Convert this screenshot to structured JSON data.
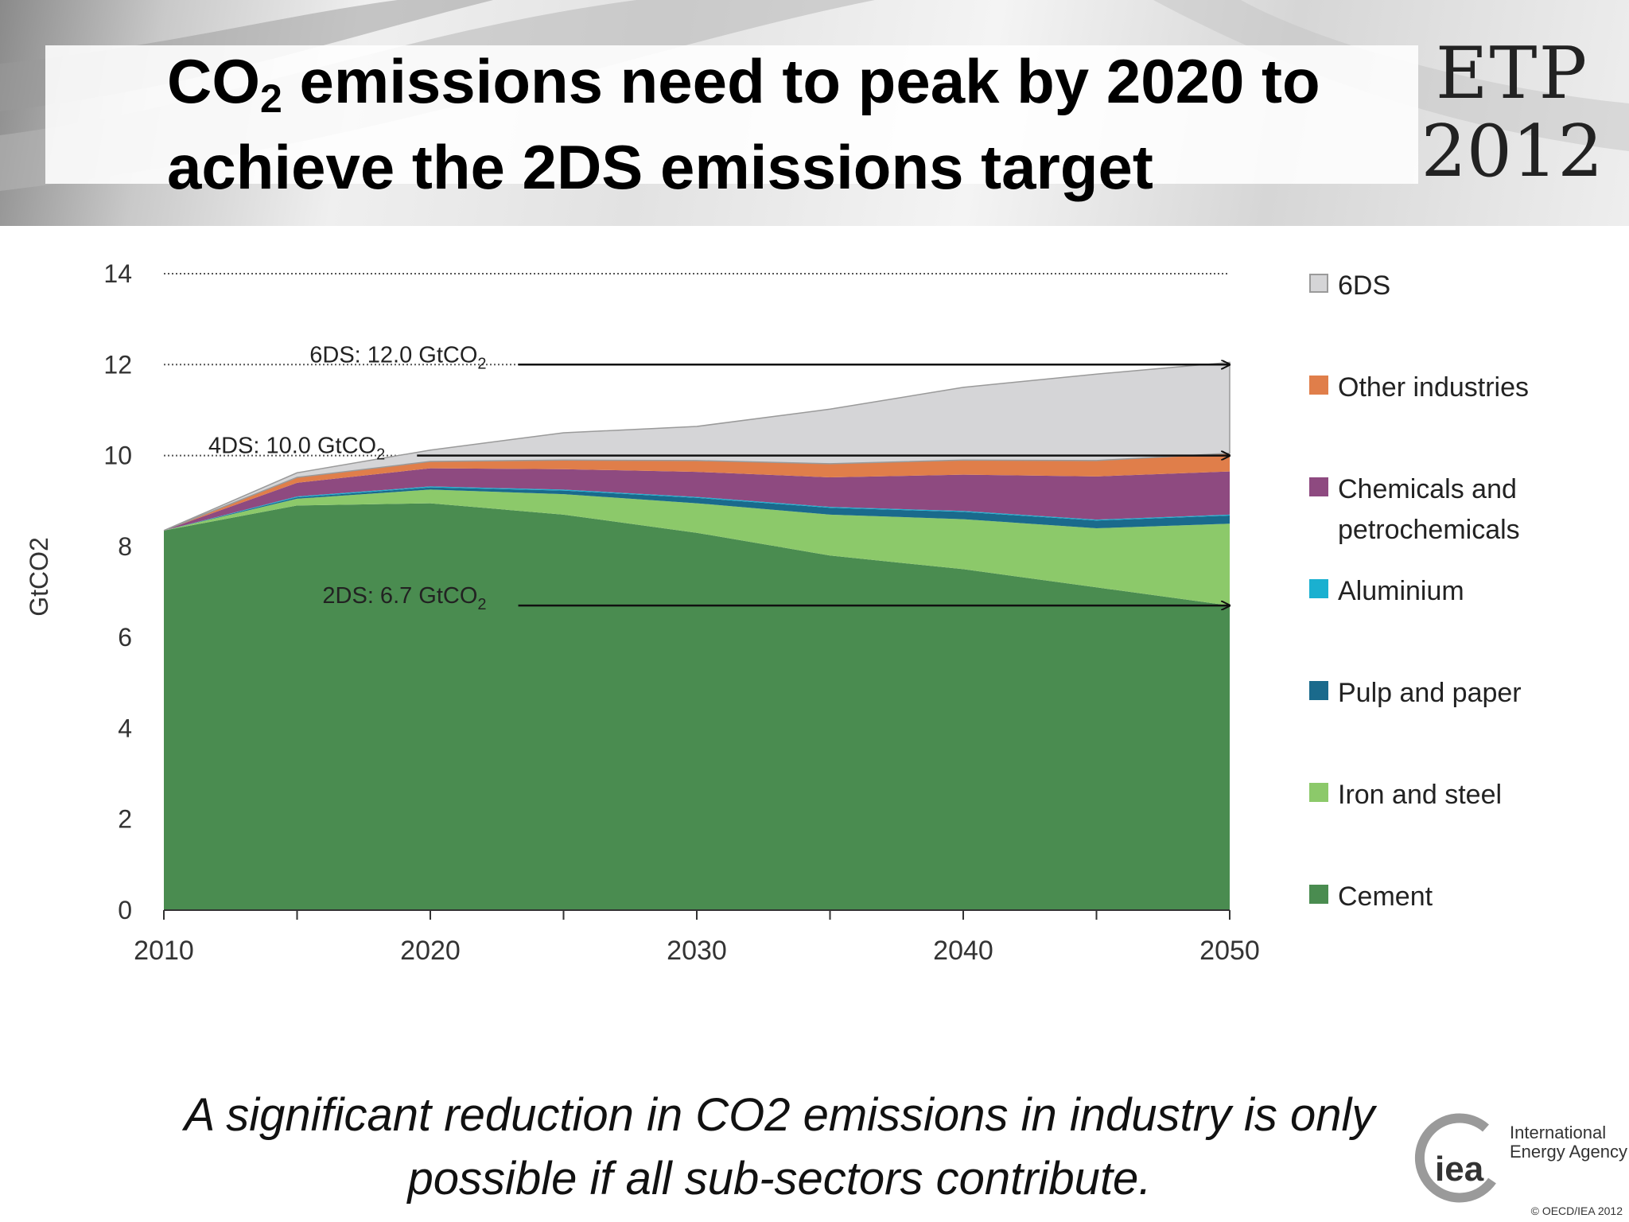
{
  "slide": {
    "title_part1": "CO",
    "title_sub": "2",
    "title_part2": " emissions need to peak by 2020 to achieve the 2DS emissions target",
    "logo_top": "ETP",
    "logo_year": "2012",
    "caption": "A significant reduction in CO2 emissions in industry is only possible if all sub-sectors contribute.",
    "iea_name": "International Energy Agency",
    "iea_mark": "iea",
    "copyright": "© OECD/IEA 2012"
  },
  "chart_data": {
    "type": "area",
    "stacked": true,
    "ylabel": "GtCO2",
    "xlabel": "",
    "x": [
      2010,
      2015,
      2020,
      2025,
      2030,
      2035,
      2040,
      2045,
      2050
    ],
    "xticks": [
      2010,
      2020,
      2030,
      2040,
      2050
    ],
    "xlim": [
      2010,
      2050
    ],
    "ylim": [
      0,
      14
    ],
    "yticks": [
      0,
      2,
      4,
      6,
      8,
      10,
      12,
      14
    ],
    "grid": "horizontal dotted",
    "legend_position": "right",
    "series": [
      {
        "name": "Cement",
        "color": "#4a8c50",
        "values": [
          8.35,
          8.9,
          8.95,
          8.7,
          8.3,
          7.8,
          7.5,
          7.1,
          6.7
        ]
      },
      {
        "name": "Iron and steel",
        "color": "#8cc96a",
        "values": [
          0.0,
          0.15,
          0.3,
          0.45,
          0.65,
          0.9,
          1.1,
          1.3,
          1.8
        ]
      },
      {
        "name": "Pulp and paper",
        "color": "#1a6a8c",
        "values": [
          0.0,
          0.03,
          0.05,
          0.08,
          0.12,
          0.15,
          0.16,
          0.17,
          0.18
        ]
      },
      {
        "name": "Aluminium",
        "color": "#1ab0d0",
        "values": [
          0.0,
          0.02,
          0.02,
          0.02,
          0.02,
          0.02,
          0.02,
          0.02,
          0.02
        ]
      },
      {
        "name": "Chemicals and petrochemicals",
        "color": "#8e4a80",
        "values": [
          0.0,
          0.3,
          0.4,
          0.45,
          0.55,
          0.65,
          0.8,
          0.95,
          0.95
        ]
      },
      {
        "name": "Other industries",
        "color": "#e07e4a",
        "values": [
          0.0,
          0.12,
          0.15,
          0.2,
          0.25,
          0.3,
          0.32,
          0.35,
          0.4
        ]
      },
      {
        "name": "6DS",
        "color": "#d5d5d7",
        "values": [
          0.0,
          0.1,
          0.25,
          0.6,
          0.75,
          1.2,
          1.6,
          1.9,
          2.0
        ]
      }
    ],
    "annotations": [
      {
        "label": "6DS: 12.0 GtCO",
        "sub": "2",
        "y": 12.0,
        "x_start": 2023.3
      },
      {
        "label": "4DS: 10.0 GtCO",
        "sub": "2",
        "y": 10.0,
        "x_start": 2019.5
      },
      {
        "label": "2DS: 6.7 GtCO",
        "sub": "2",
        "y": 6.7,
        "x_start": 2023.3
      }
    ]
  }
}
